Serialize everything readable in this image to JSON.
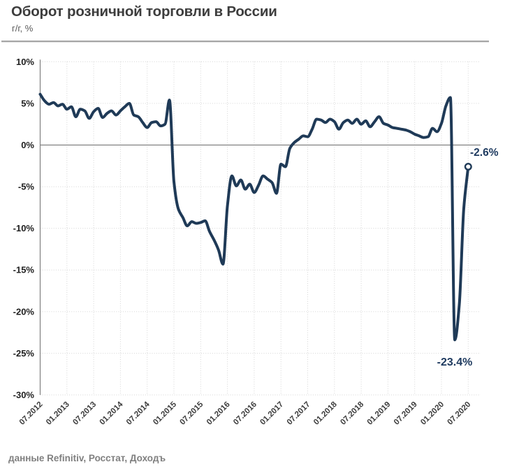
{
  "header": {
    "title": "Оборот розничной торговли в России",
    "subtitle": "г/г, %"
  },
  "footer": {
    "source": "данные Refinitiv, Росстат, Доходъ"
  },
  "chart_data": {
    "type": "line",
    "title": "Оборот розничной торговли в России",
    "ylabel": "г/г, %",
    "x_start": "07.2012",
    "x_end": "07.2020",
    "frequency": "monthly",
    "x_tick_labels": [
      "07.2012",
      "01.2013",
      "07.2013",
      "01.2014",
      "07.2014",
      "01.2015",
      "07.2015",
      "01.2016",
      "07.2016",
      "01.2017",
      "07.2017",
      "01.2018",
      "07.2018",
      "01.2019",
      "07.2019",
      "01.2020",
      "07.2020"
    ],
    "y_tick_values": [
      10,
      5,
      0,
      -5,
      -10,
      -15,
      -20,
      -25,
      -30
    ],
    "y_tick_labels": [
      "10%",
      "5%",
      "0%",
      "-5%",
      "-10%",
      "-15%",
      "-20%",
      "-25%",
      "-30%"
    ],
    "ylim": [
      -30,
      10
    ],
    "grid": "dotted",
    "legend": "none",
    "series": [
      {
        "name": "Оборот розничной торговли, г/г %",
        "values": [
          6.1,
          5.3,
          4.9,
          5.1,
          4.7,
          4.9,
          4.3,
          4.6,
          3.4,
          4.3,
          4.1,
          3.2,
          4.0,
          4.4,
          3.3,
          3.8,
          4.1,
          3.6,
          4.1,
          4.6,
          5.0,
          3.6,
          3.4,
          2.7,
          2.1,
          2.7,
          2.8,
          2.3,
          2.5,
          5.4,
          -4.4,
          -7.7,
          -8.7,
          -9.7,
          -9.2,
          -9.4,
          -9.3,
          -9.1,
          -10.4,
          -11.4,
          -12.6,
          -14.3,
          -7.3,
          -3.7,
          -4.9,
          -4.2,
          -5.3,
          -4.7,
          -5.7,
          -4.8,
          -3.7,
          -4.1,
          -4.5,
          -5.8,
          -2.3,
          -2.6,
          -0.4,
          0.3,
          0.7,
          1.1,
          1.0,
          1.9,
          3.1,
          3.0,
          2.7,
          3.1,
          2.8,
          1.9,
          2.7,
          3.0,
          2.6,
          3.1,
          2.5,
          2.9,
          2.2,
          2.8,
          3.4,
          2.6,
          2.4,
          2.1,
          2.0,
          1.9,
          1.8,
          1.6,
          1.3,
          1.1,
          0.9,
          1.0,
          2.0,
          1.6,
          2.6,
          4.7,
          5.7,
          -23.4,
          -19.2,
          -7.7,
          -2.6
        ]
      }
    ],
    "annotations": {
      "min_point": {
        "text": "-23.4%",
        "value": -23.4
      },
      "last_point": {
        "text": "-2.6%",
        "value": -2.6
      }
    },
    "colors": {
      "line": "#1f3a57",
      "annotation": "#1e3a5f",
      "grid": "#d4d4d4",
      "zero_line": "#808080",
      "axis": "#808080",
      "y_tick_text": "#1f1f1f",
      "x_tick_text": "#3d3d3d"
    }
  }
}
